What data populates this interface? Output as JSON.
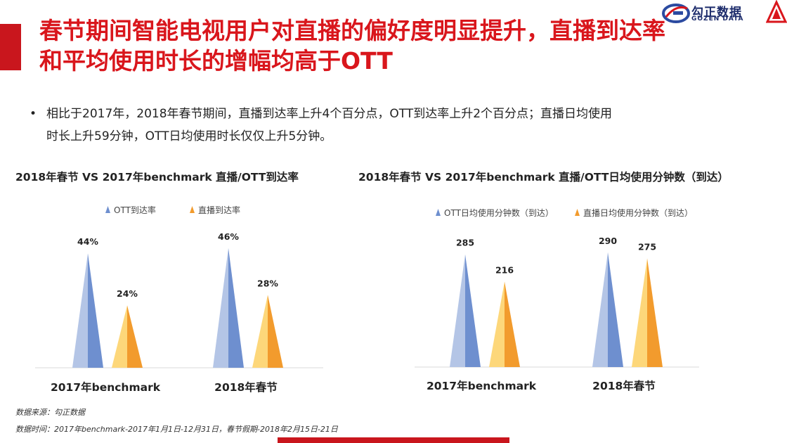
{
  "header": {
    "title_lines": [
      "春节期间智能电视用户对直播的偏好度明显提升，直播到达率",
      "和平均使用时长的增幅均高于OTT"
    ],
    "logo_cn": "勾正数据",
    "logo_en": "GOZEN DATA"
  },
  "bullet": {
    "marker": "•",
    "lines": [
      "相比于2017年，2018年春节期间，直播到达率上升4个百分点，OTT到达率上升2个百分点；直播日均使用",
      "时长上升59分钟，OTT日均使用时长仅仅上升5分钟。"
    ]
  },
  "footer": {
    "source": "数据来源：勾正数据",
    "period": "数据时间：2017年benchmark-2017年1月1日-12月31日，春节假期-2018年2月15日-21日"
  },
  "colors": {
    "accent": "#d9161c",
    "ott_light": "#b4c5e6",
    "ott_dark": "#6e8fcf",
    "live_light": "#fdd77a",
    "live_dark": "#f29b2d"
  },
  "chart_data": [
    {
      "type": "bar",
      "title": "2018年春节  VS  2017年benchmark  直播/OTT到达率",
      "categories": [
        "2017年benchmark",
        "2018年春节"
      ],
      "series": [
        {
          "name": "OTT到达率",
          "values": [
            44,
            46
          ],
          "labels": [
            "44%",
            "46%"
          ]
        },
        {
          "name": "直播到达率",
          "values": [
            24,
            28
          ],
          "labels": [
            "24%",
            "28%"
          ]
        }
      ],
      "ylim": [
        0,
        50
      ],
      "grid": false,
      "legend": "top-left"
    },
    {
      "type": "bar",
      "title": "2018年春节  VS  2017年benchmark 直播/OTT日均使用分钟数（到达）",
      "categories": [
        "2017年benchmark",
        "2018年春节"
      ],
      "series": [
        {
          "name": "OTT日均使用分钟数（到达）",
          "values": [
            285,
            290
          ],
          "labels": [
            "285",
            "290"
          ]
        },
        {
          "name": "直播日均使用分钟数（到达）",
          "values": [
            216,
            275
          ],
          "labels": [
            "216",
            "275"
          ]
        }
      ],
      "ylim": [
        0,
        320
      ],
      "grid": false,
      "legend": "top-left"
    }
  ]
}
